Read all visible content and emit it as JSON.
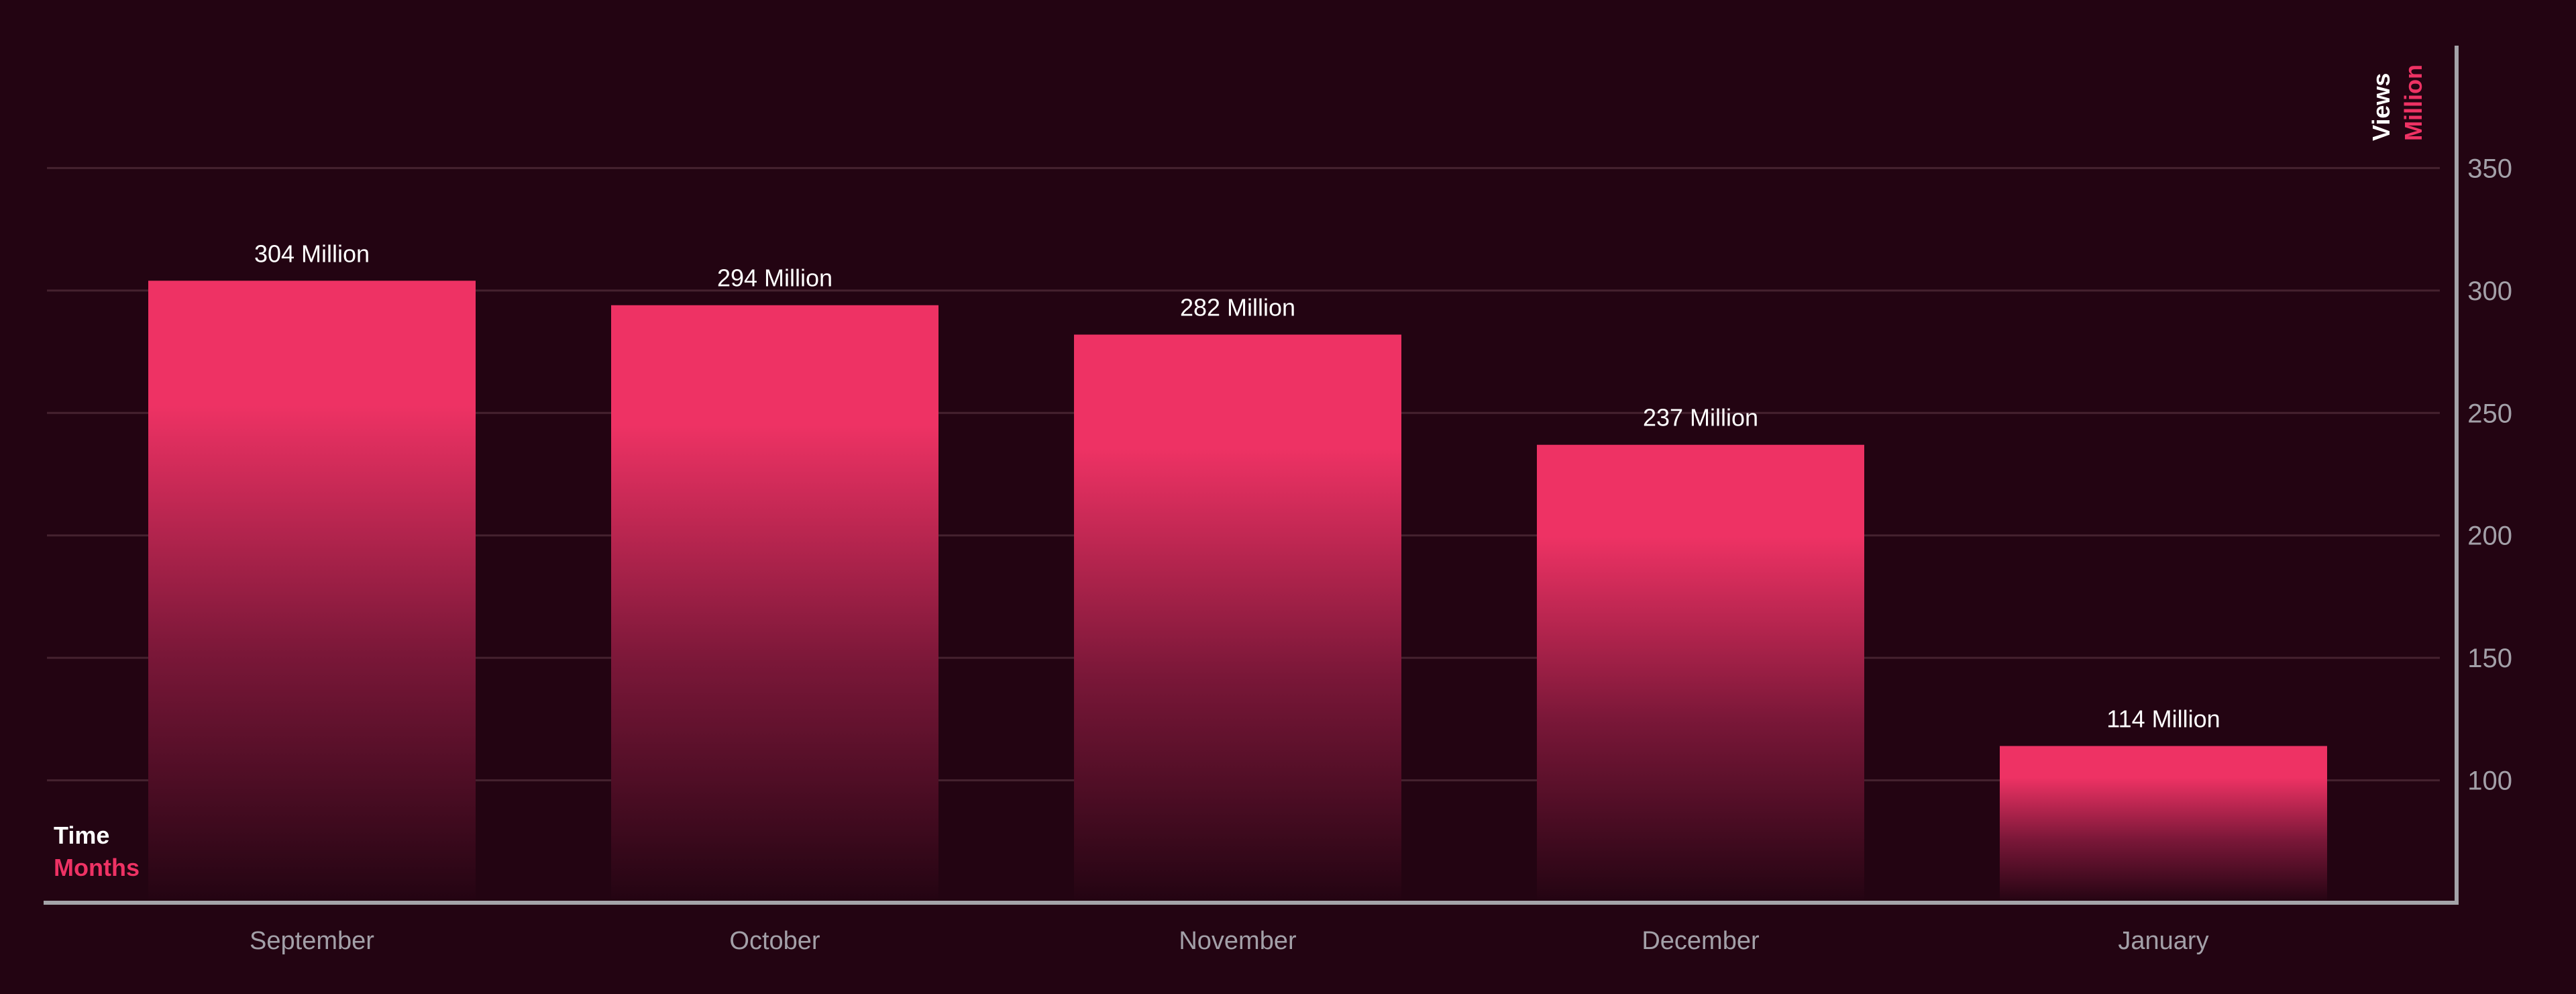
{
  "chart_data": {
    "type": "bar",
    "categories": [
      "September",
      "October",
      "November",
      "December",
      "January"
    ],
    "values": [
      304,
      294,
      282,
      237,
      114
    ],
    "data_labels": [
      "304 Million",
      "294 Million",
      "282 Million",
      "237 Million",
      "114 Million"
    ],
    "title": "",
    "xlabel": "Time",
    "xlabel_unit": "Months",
    "ylabel": "Views",
    "ylabel_unit": "Million",
    "yticks": [
      100,
      150,
      200,
      250,
      300,
      350
    ],
    "ylim": [
      50,
      400
    ],
    "y_axis_side": "right",
    "grid": true,
    "legend": "none"
  },
  "colors": {
    "background": "#230412",
    "bar": "#ee3264",
    "bar_fade": "#230412",
    "axis": "#a4a4a9",
    "gridline": "#45222f",
    "tick_text": "#a3a0a8",
    "label_text": "#ffffff",
    "accent_text": "#ee3264"
  }
}
